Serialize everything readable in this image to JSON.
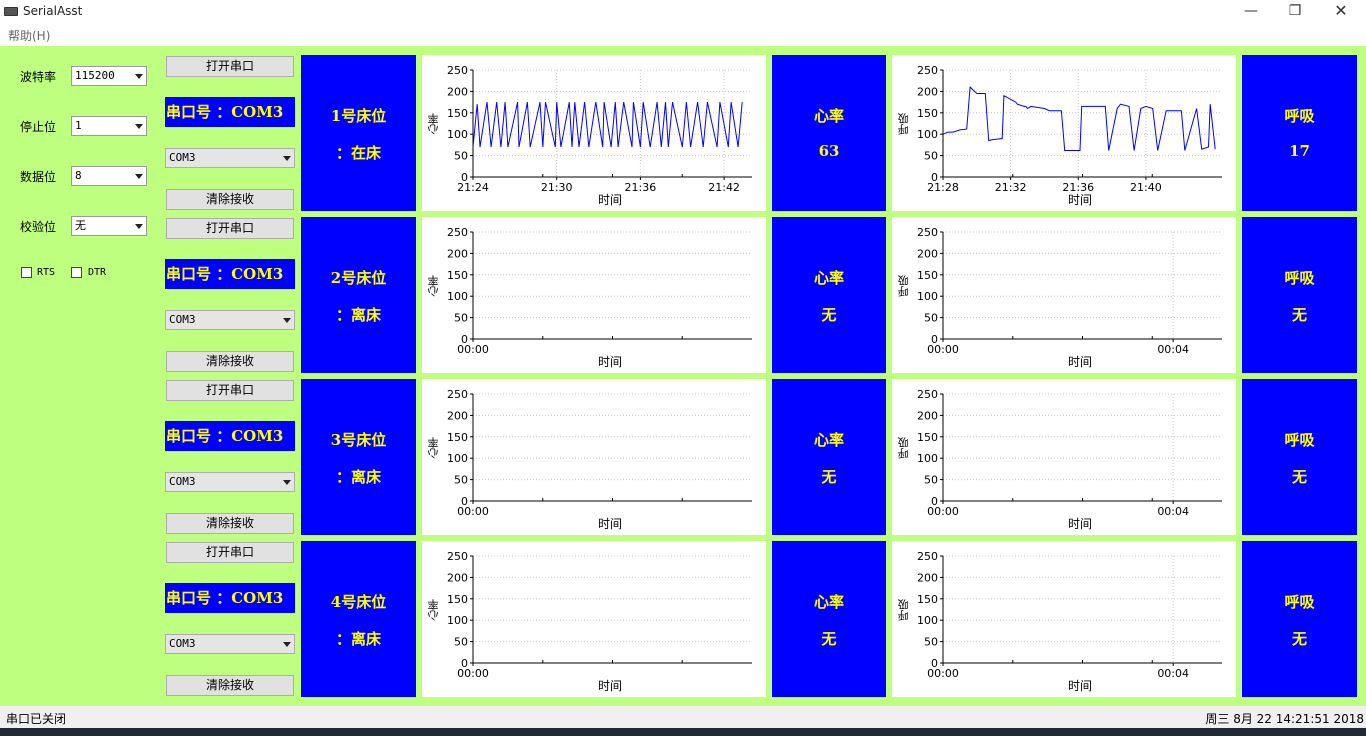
{
  "window": {
    "title": "SerialAsst",
    "minimize_glyph": "—",
    "restore_glyph": "❐",
    "close_glyph": "✕"
  },
  "menu": {
    "help": "帮助(H)"
  },
  "settings": {
    "baud_label": "波特率",
    "baud_value": "115200",
    "stop_label": "停止位",
    "stop_value": "1",
    "data_label": "数据位",
    "data_value": "8",
    "parity_label": "校验位",
    "parity_value": "无",
    "rts_label": "RTS",
    "dtr_label": "DTR"
  },
  "rows": [
    {
      "open_btn": "打开串口",
      "port_label": "串口号 ：COM3",
      "port_select": "COM3",
      "clear_btn": "清除接收",
      "bed_title": "1号床位",
      "bed_status": "：在床",
      "hr_title": "心率",
      "hr_value": "63",
      "resp_title": "呼吸",
      "resp_value": "17"
    },
    {
      "open_btn": "打开串口",
      "port_label": "串口号 ：COM3",
      "port_select": "COM3",
      "clear_btn": "清除接收",
      "bed_title": "2号床位",
      "bed_status": "：离床",
      "hr_title": "心率",
      "hr_value": "无",
      "resp_title": "呼吸",
      "resp_value": "无"
    },
    {
      "open_btn": "打开串口",
      "port_label": "串口号 ：COM3",
      "port_select": "COM3",
      "clear_btn": "清除接收",
      "bed_title": "3号床位",
      "bed_status": "：离床",
      "hr_title": "心率",
      "hr_value": "无",
      "resp_title": "呼吸",
      "resp_value": "无"
    },
    {
      "open_btn": "打开串口",
      "port_label": "串口号 ：COM3",
      "port_select": "COM3",
      "clear_btn": "清除接收",
      "bed_title": "4号床位",
      "bed_status": "：离床",
      "hr_title": "心率",
      "hr_value": "无",
      "resp_title": "呼吸",
      "resp_value": "无"
    }
  ],
  "chart_data": [
    {
      "type": "line",
      "title": "",
      "xlabel": "时间",
      "ylabel": "心率",
      "ylim": [
        0,
        250
      ],
      "yticks": [
        0,
        50,
        100,
        150,
        200,
        250
      ],
      "xticks": [
        "21:24",
        "21:30",
        "21:36",
        "21:42"
      ],
      "x_tick_min": [
        0,
        6,
        12,
        18
      ],
      "xlim_min": [
        0,
        20
      ],
      "grid": true,
      "line_color": "#0000ff",
      "series": [
        {
          "x_min": [
            0,
            0.3,
            0.5,
            1,
            1.3,
            1.7,
            2,
            2.3,
            2.5,
            3.2,
            3.3,
            3.9,
            4.1,
            4.8,
            5,
            5.2,
            5.9,
            6,
            6.3,
            6.9,
            7.1,
            7.3,
            7.6,
            8,
            8.3,
            8.8,
            9.3,
            9.4,
            9.9,
            10.2,
            10.4,
            10.8,
            11.4,
            11.5,
            12,
            12.2,
            12.7,
            13.2,
            13.5,
            13.8,
            14,
            14.3,
            15,
            15.3,
            15.6,
            16.1,
            16.5,
            16.8,
            17.5,
            17.7,
            18.3,
            18.5,
            19,
            19.3
          ],
          "y": [
            70,
            170,
            70,
            175,
            70,
            175,
            70,
            175,
            70,
            175,
            70,
            175,
            70,
            175,
            70,
            175,
            70,
            175,
            70,
            175,
            70,
            175,
            70,
            175,
            70,
            175,
            70,
            175,
            70,
            175,
            70,
            175,
            70,
            175,
            70,
            175,
            70,
            175,
            70,
            175,
            70,
            175,
            70,
            175,
            70,
            175,
            70,
            175,
            70,
            175,
            70,
            175,
            70,
            175
          ]
        }
      ]
    },
    {
      "type": "line",
      "title": "",
      "xlabel": "时间",
      "ylabel": "呼吸",
      "ylim": [
        0,
        250
      ],
      "yticks": [
        0,
        50,
        100,
        150,
        200,
        250
      ],
      "xticks": [
        "21:28",
        "21:32",
        "21:36",
        "21:40"
      ],
      "x_tick_min": [
        0,
        4,
        8,
        12
      ],
      "xlim_min": [
        0,
        16.5
      ],
      "grid": true,
      "line_color": "#0000ff",
      "series": [
        {
          "x_min": [
            0,
            0.3,
            0.6,
            1,
            1.4,
            1.6,
            2,
            2.5,
            2.7,
            2.9,
            3.5,
            3.6,
            4.3,
            4.4,
            4.8,
            4.9,
            5,
            5.2,
            6,
            6.3,
            7,
            7.2,
            8.1,
            8.2,
            9.6,
            9.8,
            10.3,
            10.5,
            11,
            11.3,
            11.7,
            12,
            12.4,
            12.7,
            13.2,
            13.5,
            14.1,
            14.3,
            15,
            15.3,
            15.7,
            15.8,
            16.1
          ],
          "y": [
            100,
            105,
            105,
            110,
            112,
            210,
            195,
            195,
            85,
            87,
            90,
            190,
            175,
            170,
            165,
            165,
            160,
            165,
            160,
            155,
            155,
            62,
            62,
            165,
            165,
            62,
            160,
            170,
            165,
            62,
            160,
            165,
            160,
            62,
            155,
            155,
            155,
            62,
            160,
            65,
            70,
            170,
            65
          ]
        }
      ]
    },
    {
      "type": "line",
      "title": "",
      "xlabel": "时间",
      "ylabel": "心率",
      "ylim": [
        0,
        250
      ],
      "yticks": [
        0,
        50,
        100,
        150,
        200,
        250
      ],
      "xticks": [
        "00:00"
      ],
      "grid": true,
      "series": []
    },
    {
      "type": "line",
      "title": "",
      "xlabel": "时间",
      "ylabel": "呼吸",
      "ylim": [
        0,
        250
      ],
      "yticks": [
        0,
        50,
        100,
        150,
        200,
        250
      ],
      "xticks": [
        "00:00",
        "00:04"
      ],
      "grid": true,
      "series": []
    },
    {
      "type": "line",
      "title": "",
      "xlabel": "时间",
      "ylabel": "心率",
      "ylim": [
        0,
        250
      ],
      "yticks": [
        0,
        50,
        100,
        150,
        200,
        250
      ],
      "xticks": [
        "00:00"
      ],
      "grid": true,
      "series": []
    },
    {
      "type": "line",
      "title": "",
      "xlabel": "时间",
      "ylabel": "呼吸",
      "ylim": [
        0,
        250
      ],
      "yticks": [
        0,
        50,
        100,
        150,
        200,
        250
      ],
      "xticks": [
        "00:00",
        "00:04"
      ],
      "grid": true,
      "series": []
    },
    {
      "type": "line",
      "title": "",
      "xlabel": "时间",
      "ylabel": "心率",
      "ylim": [
        0,
        250
      ],
      "yticks": [
        0,
        50,
        100,
        150,
        200,
        250
      ],
      "xticks": [
        "00:00"
      ],
      "grid": true,
      "series": []
    },
    {
      "type": "line",
      "title": "",
      "xlabel": "时间",
      "ylabel": "呼吸",
      "ylim": [
        0,
        250
      ],
      "yticks": [
        0,
        50,
        100,
        150,
        200,
        250
      ],
      "xticks": [
        "00:00",
        "00:04"
      ],
      "grid": true,
      "series": []
    }
  ],
  "status": {
    "left": "串口已关闭",
    "right": "周三 8月 22 14:21:51 2018"
  },
  "colors": {
    "client_bg": "#bfff7f",
    "panel_blue": "#0000ff",
    "panel_text": "#ffff00",
    "line": "#0000ff"
  },
  "icons": {
    "app": "serial-port-icon",
    "dropdown": "chevron-down-icon"
  }
}
